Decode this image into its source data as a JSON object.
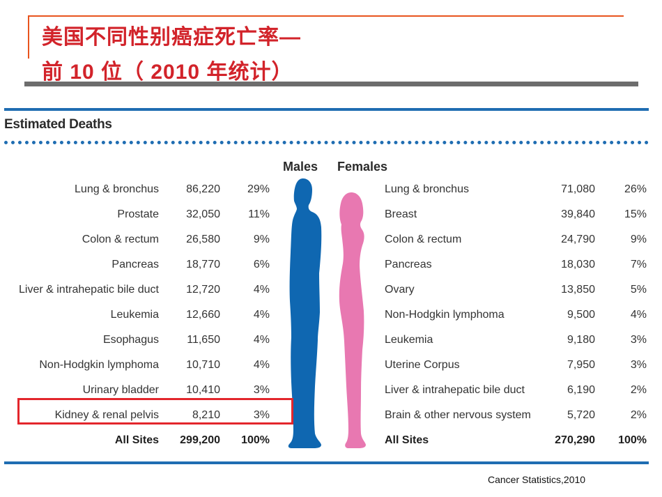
{
  "title": {
    "line1": "美国不同性别癌症死亡率—",
    "line2": "前 10 位（ 2010 年统计）"
  },
  "figure": {
    "heading": "Estimated Deaths",
    "males_label": "Males",
    "females_label": "Females",
    "male_color": "#0f67b1",
    "female_color": "#e878b1",
    "males": [
      {
        "site": "Lung & bronchus",
        "deaths": "86,220",
        "pct": "29%"
      },
      {
        "site": "Prostate",
        "deaths": "32,050",
        "pct": "11%"
      },
      {
        "site": "Colon & rectum",
        "deaths": "26,580",
        "pct": "9%"
      },
      {
        "site": "Pancreas",
        "deaths": "18,770",
        "pct": "6%"
      },
      {
        "site": "Liver & intrahepatic bile duct",
        "deaths": "12,720",
        "pct": "4%"
      },
      {
        "site": "Leukemia",
        "deaths": "12,660",
        "pct": "4%"
      },
      {
        "site": "Esophagus",
        "deaths": "11,650",
        "pct": "4%"
      },
      {
        "site": "Non-Hodgkin lymphoma",
        "deaths": "10,710",
        "pct": "4%"
      },
      {
        "site": "Urinary bladder",
        "deaths": "10,410",
        "pct": "3%"
      },
      {
        "site": "Kidney & renal pelvis",
        "deaths": "8,210",
        "pct": "3%"
      }
    ],
    "males_total": {
      "site": "All Sites",
      "deaths": "299,200",
      "pct": "100%"
    },
    "females": [
      {
        "site": "Lung & bronchus",
        "deaths": "71,080",
        "pct": "26%"
      },
      {
        "site": "Breast",
        "deaths": "39,840",
        "pct": "15%"
      },
      {
        "site": "Colon & rectum",
        "deaths": "24,790",
        "pct": "9%"
      },
      {
        "site": "Pancreas",
        "deaths": "18,030",
        "pct": "7%"
      },
      {
        "site": "Ovary",
        "deaths": "13,850",
        "pct": "5%"
      },
      {
        "site": "Non-Hodgkin lymphoma",
        "deaths": "9,500",
        "pct": "4%"
      },
      {
        "site": "Leukemia",
        "deaths": "9,180",
        "pct": "3%"
      },
      {
        "site": "Uterine Corpus",
        "deaths": "7,950",
        "pct": "3%"
      },
      {
        "site": "Liver & intrahepatic bile duct",
        "deaths": "6,190",
        "pct": "2%"
      },
      {
        "site": "Brain & other nervous system",
        "deaths": "5,720",
        "pct": "2%"
      }
    ],
    "females_total": {
      "site": "All Sites",
      "deaths": "270,290",
      "pct": "100%"
    }
  },
  "caption": "Cancer Statistics,2010"
}
